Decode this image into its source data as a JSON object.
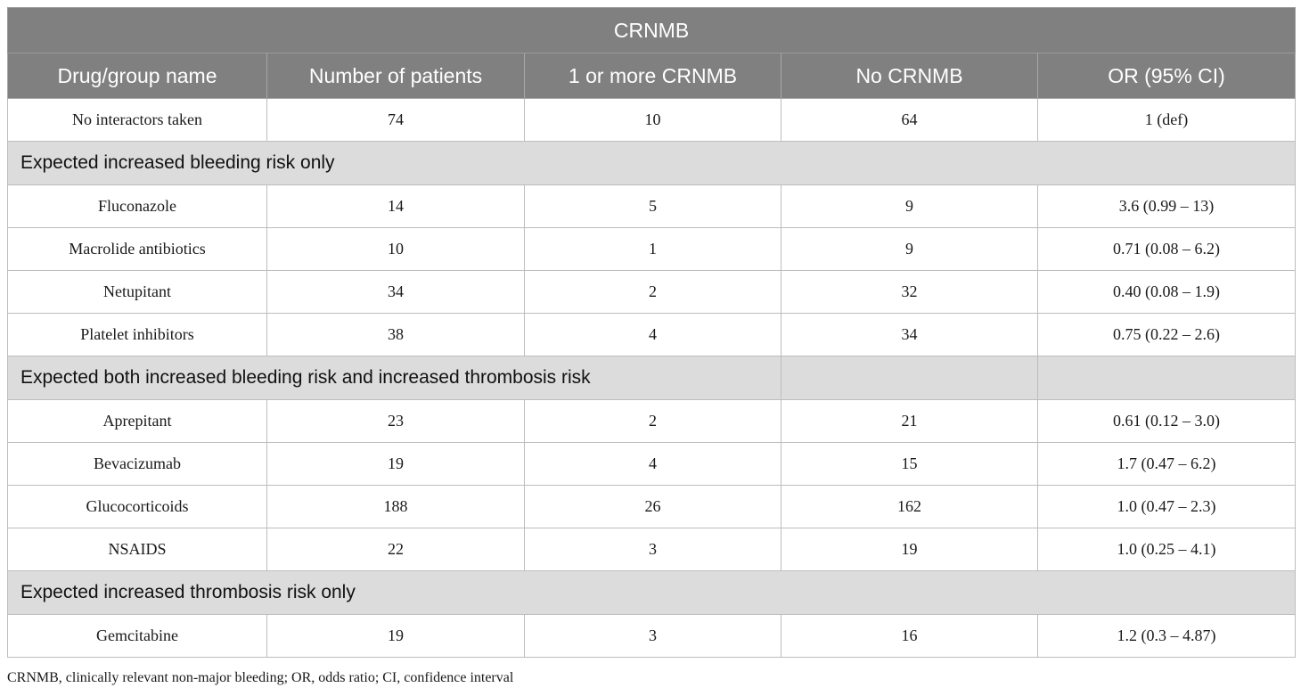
{
  "table": {
    "title": "CRNMB",
    "headers": [
      "Drug/group name",
      "Number of patients",
      "1 or more CRNMB",
      "No CRNMB",
      "OR (95% CI)"
    ],
    "reference_row": [
      "No interactors taken",
      "74",
      "10",
      "64",
      "1 (def)"
    ],
    "groups": [
      {
        "label": "Expected increased bleeding risk only",
        "rows": [
          [
            "Fluconazole",
            "14",
            "5",
            "9",
            "3.6 (0.99 – 13)"
          ],
          [
            "Macrolide antibiotics",
            "10",
            "1",
            "9",
            "0.71 (0.08 – 6.2)"
          ],
          [
            "Netupitant",
            "34",
            "2",
            "32",
            "0.40 (0.08 – 1.9)"
          ],
          [
            "Platelet inhibitors",
            "38",
            "4",
            "34",
            "0.75 (0.22 – 2.6)"
          ]
        ]
      },
      {
        "label": "Expected both increased bleeding risk and increased thrombosis risk",
        "rows": [
          [
            "Aprepitant",
            "23",
            "2",
            "21",
            "0.61 (0.12 – 3.0)"
          ],
          [
            "Bevacizumab",
            "19",
            "4",
            "15",
            "1.7 (0.47 – 6.2)"
          ],
          [
            "Glucocorticoids",
            "188",
            "26",
            "162",
            "1.0 (0.47 – 2.3)"
          ],
          [
            "NSAIDS",
            "22",
            "3",
            "19",
            "1.0 (0.25 – 4.1)"
          ]
        ]
      },
      {
        "label": "Expected increased thrombosis risk only",
        "rows": [
          [
            "Gemcitabine",
            "19",
            "3",
            "16",
            "1.2 (0.3 – 4.87)"
          ]
        ]
      }
    ]
  },
  "footnote": "CRNMB, clinically relevant non-major bleeding; OR, odds ratio; CI, confidence interval"
}
